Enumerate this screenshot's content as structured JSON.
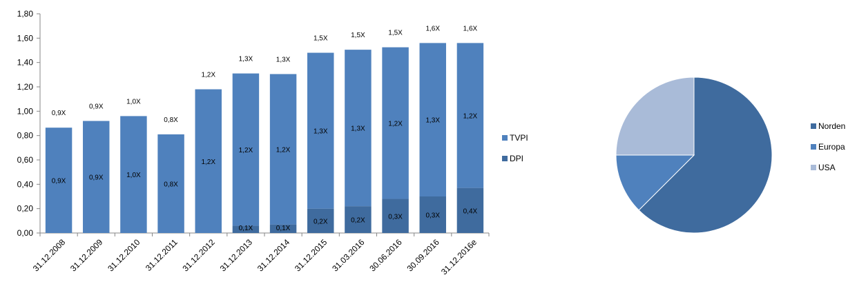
{
  "chart_data": [
    {
      "type": "bar",
      "stacked": true,
      "categories": [
        "31.12.2008",
        "31.12.2009",
        "31.12.2010",
        "31.12.2011",
        "31.12.2012",
        "31.12.2013",
        "31.12.2014",
        "31.12.2015",
        "31.03.2016",
        "30.06.2016",
        "30.09.2016",
        "31.12.2016e"
      ],
      "ylim": [
        0,
        1.8
      ],
      "yticks": [
        "0,00",
        "0,20",
        "0,40",
        "0,60",
        "0,80",
        "1,00",
        "1,20",
        "1,40",
        "1,60",
        "1,80"
      ],
      "grid": false,
      "legend_position": "right",
      "legend": [
        "TVPI",
        "DPI"
      ],
      "series": [
        {
          "name": "DPI",
          "color": "#3f6b9e",
          "values": [
            0,
            0,
            0,
            0,
            0,
            0.06,
            0.07,
            0.2,
            0.22,
            0.28,
            0.3,
            0.37
          ],
          "labels": [
            "",
            "",
            "",
            "",
            "",
            "0,1X",
            "0,1X",
            "0,2X",
            "0,2X",
            "0,3X",
            "0,3X",
            "0,4X"
          ]
        },
        {
          "name": "TVPI",
          "color": "#4f81bd",
          "values": [
            0.865,
            0.92,
            0.96,
            0.81,
            1.18,
            1.25,
            1.235,
            1.28,
            1.285,
            1.245,
            1.26,
            1.19
          ],
          "labels": [
            "0,9X",
            "0,9X",
            "1,0X",
            "0,8X",
            "1,2X",
            "1,2X",
            "1,2X",
            "1,3X",
            "1,3X",
            "1,2X",
            "1,3X",
            "1,2X"
          ]
        }
      ],
      "totals": [
        0.865,
        0.92,
        0.96,
        0.81,
        1.18,
        1.31,
        1.305,
        1.48,
        1.505,
        1.525,
        1.56,
        1.56
      ],
      "total_labels": [
        "0,9X",
        "0,9X",
        "1,0X",
        "0,8X",
        "1,2X",
        "1,3X",
        "1,3X",
        "1,5X",
        "1,5X",
        "1,5X",
        "1,6X",
        "1,6X"
      ]
    },
    {
      "type": "pie",
      "labels": [
        "Norden",
        "Europa",
        "USA"
      ],
      "values": [
        62.5,
        12.5,
        25
      ],
      "colors": [
        "#3f6b9e",
        "#4f81bd",
        "#a9bbd8"
      ],
      "legend_position": "right"
    }
  ]
}
